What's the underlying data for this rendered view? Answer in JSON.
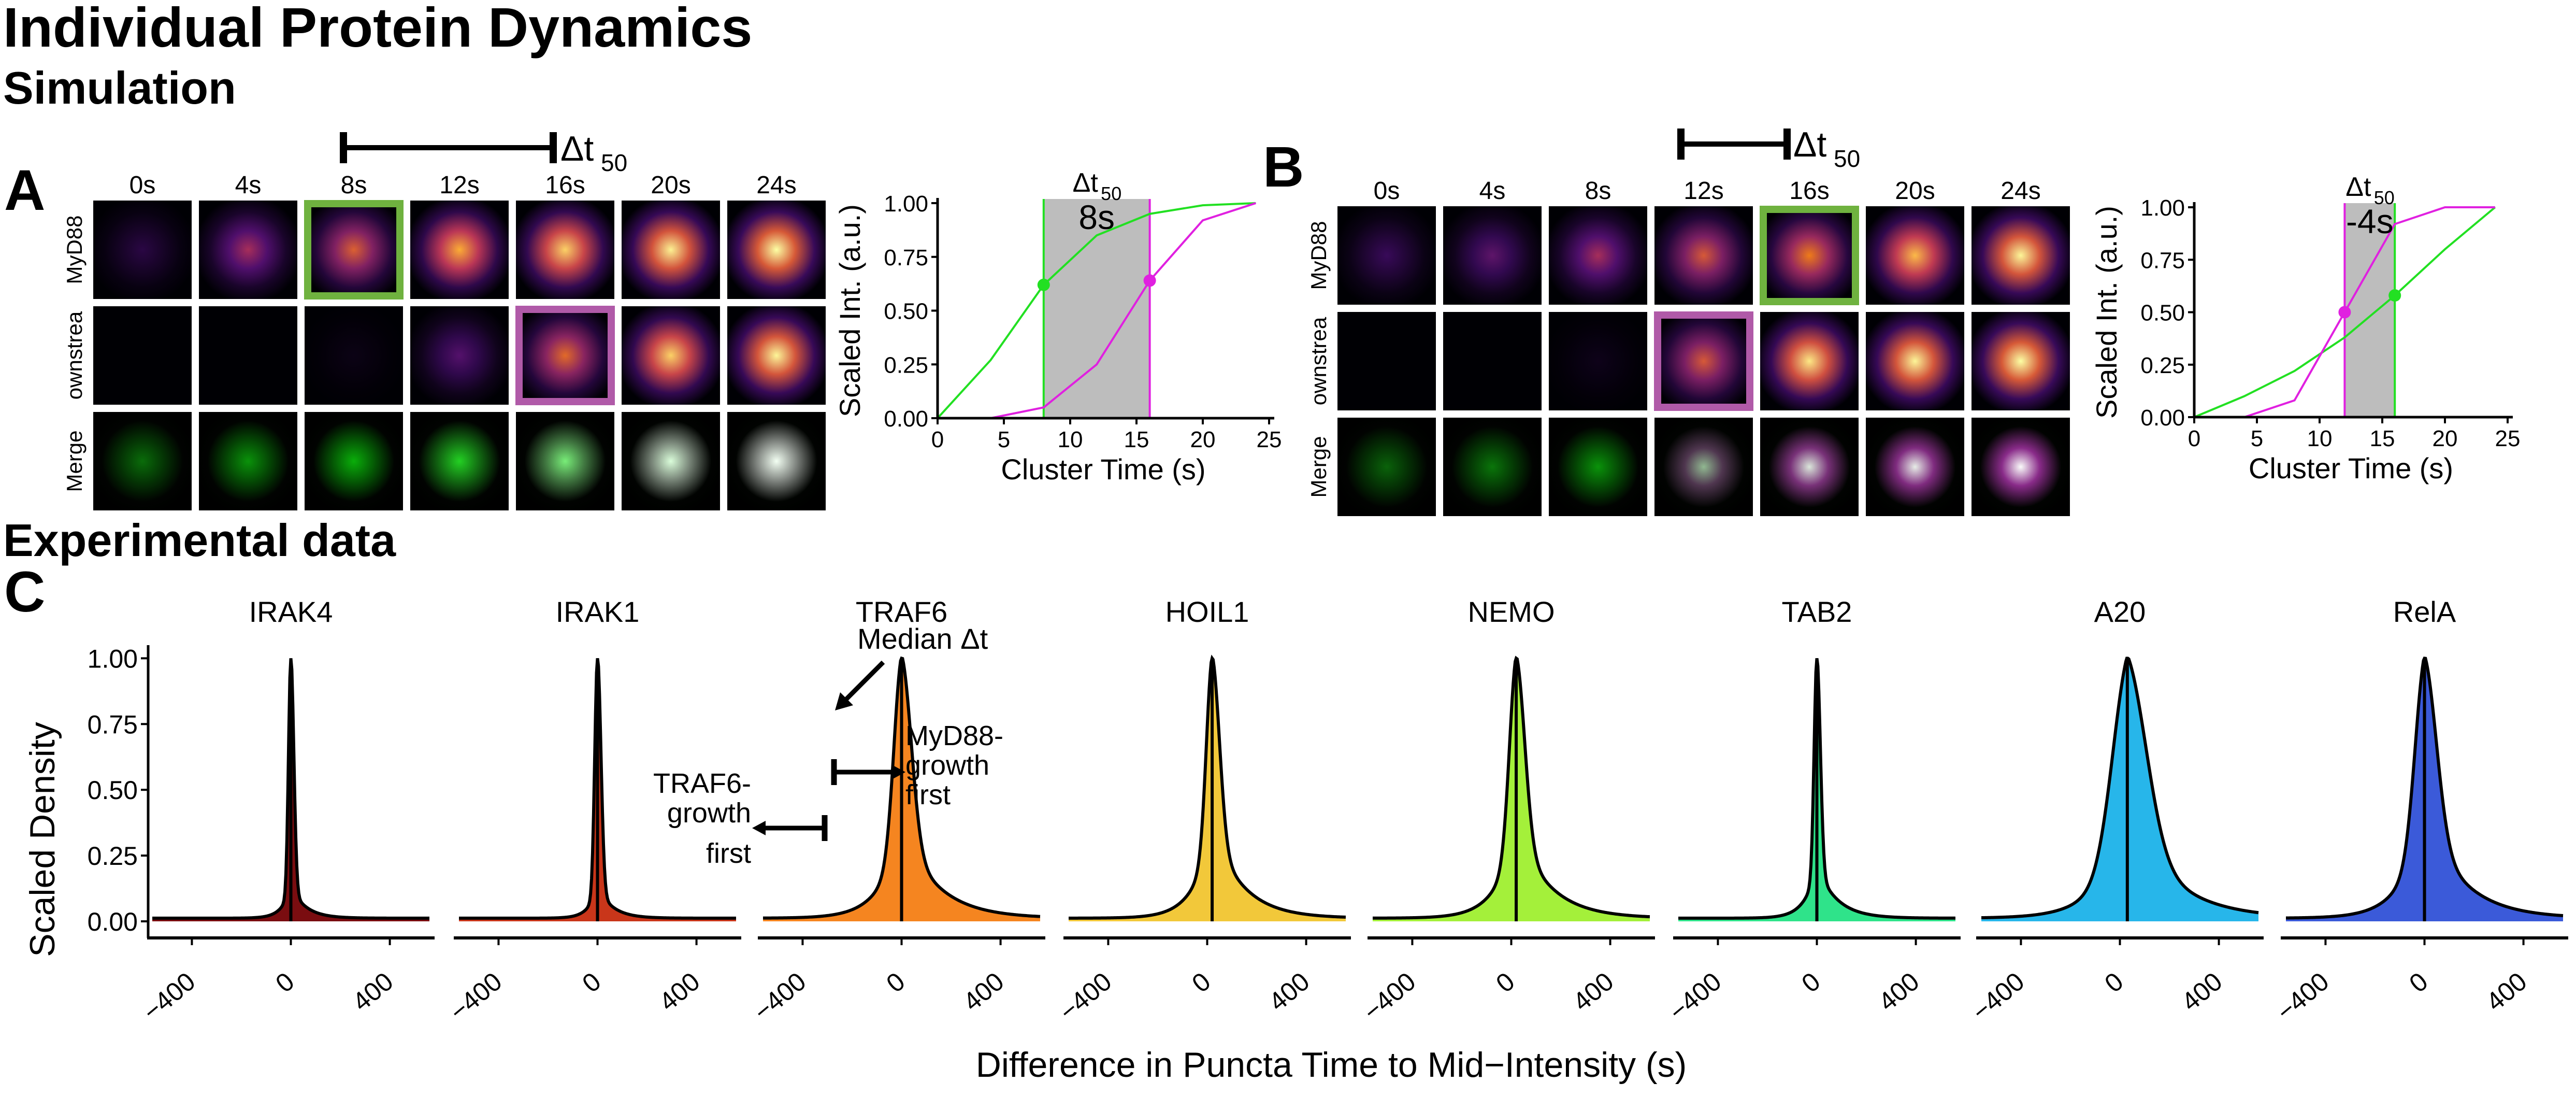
{
  "header": {
    "title": "Individual Protein Dynamics",
    "section_sim": "Simulation",
    "section_exp": "Experimental data"
  },
  "panel_labels": {
    "a": "A",
    "b": "B",
    "c": "C"
  },
  "colors": {
    "green": "#22e022",
    "magenta": "#e020e0",
    "green_box": "#6fb23f",
    "magenta_box": "#b05aa8",
    "shade": "#bdbdbd"
  },
  "simulation": {
    "a": {
      "times": [
        "0s",
        "4s",
        "8s",
        "12s",
        "16s",
        "20s",
        "24s"
      ],
      "row_labels": [
        "MyD88",
        "ownstrea",
        "Merge"
      ],
      "row1_intensity": [
        0.15,
        0.45,
        0.62,
        0.82,
        0.9,
        0.97,
        1.0
      ],
      "row2_intensity": [
        0.0,
        0.0,
        0.04,
        0.28,
        0.65,
        0.9,
        0.98
      ],
      "merge_green": [
        0.25,
        0.45,
        0.6,
        0.75,
        0.85,
        0.95,
        1.0
      ],
      "merge_white": [
        0.0,
        0.0,
        0.0,
        0.1,
        0.45,
        0.85,
        0.95
      ],
      "green_box_col": 2,
      "magenta_box_col": 4,
      "delta_label": "Δt",
      "delta_sub": "50",
      "delta_value": "8s"
    },
    "b": {
      "times": [
        "0s",
        "4s",
        "8s",
        "12s",
        "16s",
        "20s",
        "24s"
      ],
      "row_labels": [
        "MyD88",
        "ownstrea",
        "Merge"
      ],
      "row1_intensity": [
        0.2,
        0.3,
        0.45,
        0.6,
        0.7,
        0.85,
        0.98
      ],
      "row2_intensity": [
        0.0,
        0.0,
        0.05,
        0.6,
        0.95,
        0.98,
        1.0
      ],
      "merge_green": [
        0.2,
        0.3,
        0.45,
        0.2,
        0.15,
        0.1,
        0.1
      ],
      "merge_white": [
        0.0,
        0.0,
        0.0,
        0.55,
        0.85,
        0.9,
        0.98
      ],
      "merge_pink": [
        0.0,
        0.0,
        0.0,
        0.0,
        0.6,
        0.6,
        0.0
      ],
      "green_box_col": 4,
      "magenta_box_col": 3,
      "delta_label": "Δt",
      "delta_sub": "50",
      "delta_value": "-4s"
    }
  },
  "chart_data": [
    {
      "type": "line",
      "panel": "A",
      "xlabel": "Cluster Time (s)",
      "ylabel": "Scaled Int. (a.u.)",
      "xlim": [
        0,
        25
      ],
      "ylim": [
        0,
        1
      ],
      "xticks": [
        "0",
        "5",
        "10",
        "15",
        "20",
        "25"
      ],
      "yticks": [
        "0.00",
        "0.25",
        "0.50",
        "0.75",
        "1.00"
      ],
      "x": [
        0,
        4,
        8,
        12,
        16,
        20,
        24
      ],
      "series": [
        {
          "color": "#22e022",
          "values": [
            0.0,
            0.27,
            0.62,
            0.85,
            0.95,
            0.99,
            1.0
          ]
        },
        {
          "color": "#e020e0",
          "values": [
            0.0,
            0.0,
            0.05,
            0.25,
            0.64,
            0.92,
            1.0
          ]
        }
      ],
      "markers": [
        {
          "x": 8,
          "y": 0.62,
          "color": "#22e022"
        },
        {
          "x": 16,
          "y": 0.64,
          "color": "#e020e0"
        }
      ],
      "shade": [
        8,
        16
      ],
      "annotation_label": "Δt",
      "annotation_sub": "50",
      "annotation_value": "8s"
    },
    {
      "type": "line",
      "panel": "B",
      "xlabel": "Cluster Time (s)",
      "ylabel": "Scaled Int. (a.u.)",
      "xlim": [
        0,
        25
      ],
      "ylim": [
        0,
        1
      ],
      "xticks": [
        "0",
        "5",
        "10",
        "15",
        "20",
        "25"
      ],
      "yticks": [
        "0.00",
        "0.25",
        "0.50",
        "0.75",
        "1.00"
      ],
      "x": [
        0,
        4,
        8,
        12,
        16,
        20,
        24
      ],
      "series": [
        {
          "color": "#22e022",
          "values": [
            0.0,
            0.1,
            0.22,
            0.38,
            0.58,
            0.8,
            1.0
          ]
        },
        {
          "color": "#e020e0",
          "values": [
            0.0,
            0.0,
            0.08,
            0.5,
            0.92,
            1.0,
            1.0
          ]
        }
      ],
      "markers": [
        {
          "x": 12,
          "y": 0.5,
          "color": "#e020e0"
        },
        {
          "x": 16,
          "y": 0.58,
          "color": "#22e022"
        }
      ],
      "shade": [
        12,
        16
      ],
      "annotation_label": "Δt",
      "annotation_sub": "50",
      "annotation_value": "-4s"
    },
    {
      "type": "area",
      "panel": "C",
      "xlabel": "Difference in Puncta Time to Mid−Intensity (s)",
      "ylabel": "Scaled Density",
      "xlim": [
        -560,
        560
      ],
      "ylim": [
        0,
        1.05
      ],
      "xticks": [
        "−400",
        "0",
        "400"
      ],
      "yticks": [
        "0.00",
        "0.25",
        "0.50",
        "0.75",
        "1.00"
      ],
      "facets": [
        {
          "name": "IRAK4",
          "color": "#7a0d10",
          "median": 0,
          "sigma": 12,
          "tail": 0.12,
          "tail_w": 60
        },
        {
          "name": "IRAK1",
          "color": "#c9361a",
          "median": 0,
          "sigma": 14,
          "tail": 0.12,
          "tail_w": 60
        },
        {
          "name": "TRAF6",
          "color": "#f58520",
          "median": 0,
          "sigma": 40,
          "tail": 0.35,
          "tail_w": 140
        },
        {
          "name": "HOIL1",
          "color": "#f2c83a",
          "median": 20,
          "sigma": 30,
          "tail": 0.35,
          "tail_w": 120
        },
        {
          "name": "NEMO",
          "color": "#a4f03a",
          "median": 20,
          "sigma": 35,
          "tail": 0.35,
          "tail_w": 130
        },
        {
          "name": "TAB2",
          "color": "#2fe38a",
          "median": 0,
          "sigma": 14,
          "tail": 0.2,
          "tail_w": 80
        },
        {
          "name": "A20",
          "color": "#27b6ea",
          "median": 30,
          "sigma": 80,
          "tail": 0.4,
          "tail_w": 180
        },
        {
          "name": "RelA",
          "color": "#3b5ad9",
          "median": 0,
          "sigma": 50,
          "tail": 0.4,
          "tail_w": 150
        }
      ],
      "annotations": {
        "median": "Median Δt",
        "myd88_first_1": "MyD88-",
        "myd88_first_2": "growth",
        "myd88_first_3": "first",
        "traf6_first_1": "TRAF6-",
        "traf6_first_2": "growth",
        "traf6_first_3": "first"
      }
    }
  ]
}
